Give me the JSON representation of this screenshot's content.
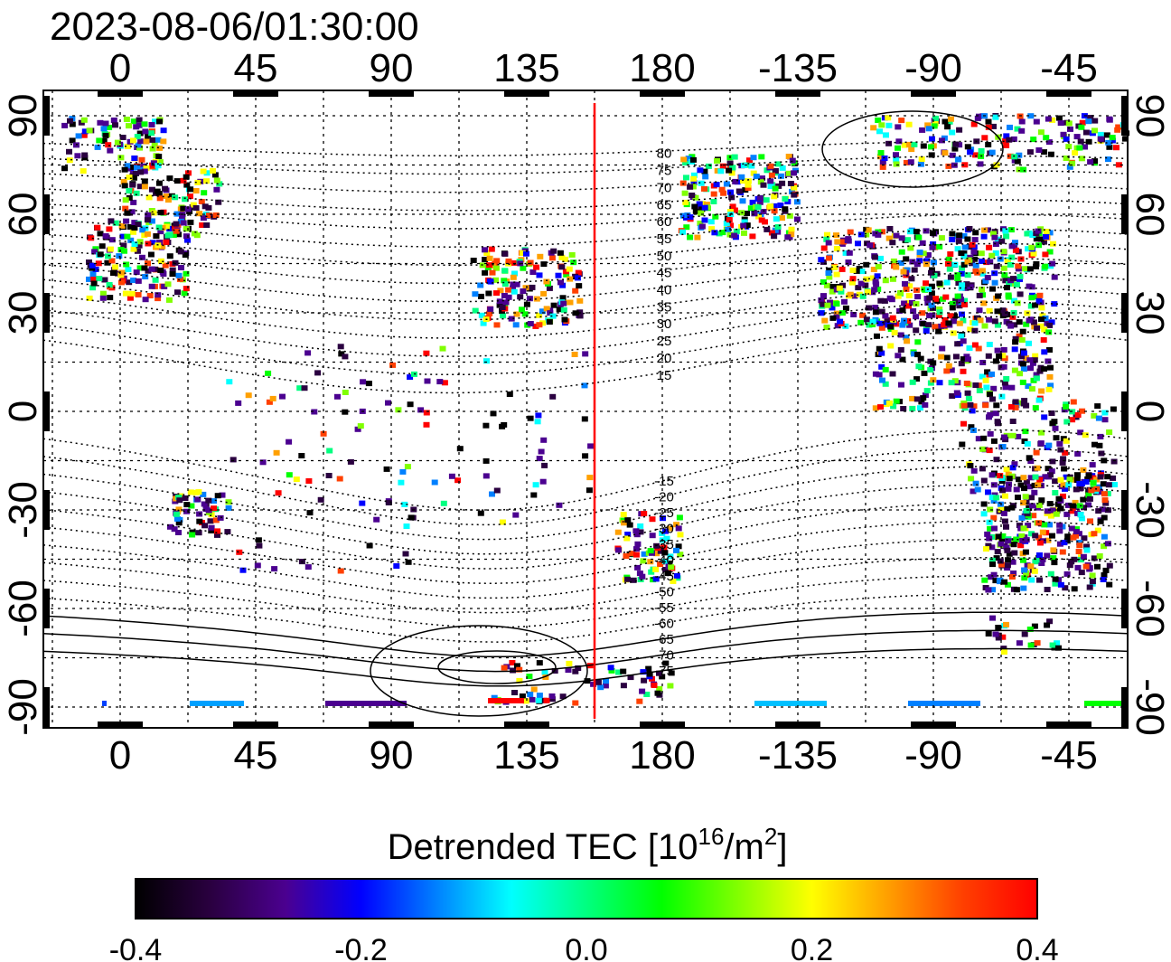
{
  "timestamp": "2023-08-06/01:30:00",
  "lon_ticks": [
    "0",
    "45",
    "90",
    "135",
    "180",
    "-135",
    "-90",
    "-45"
  ],
  "lon_values": [
    0,
    45,
    90,
    135,
    180,
    225,
    270,
    315
  ],
  "lat_ticks": [
    "90",
    "60",
    "30",
    "0",
    "-30",
    "-60",
    "-90"
  ],
  "lat_values": [
    90,
    60,
    30,
    0,
    -30,
    -60,
    -90
  ],
  "maglat_north": [
    "80",
    "75",
    "70",
    "65",
    "60",
    "55",
    "50",
    "45",
    "40",
    "35",
    "30",
    "25",
    "20",
    "15"
  ],
  "maglat_south": [
    "-15",
    "-20",
    "-25",
    "-30",
    "-35",
    "-40",
    "-45",
    "-50",
    "-55",
    "-60",
    "-65",
    "-70",
    "-75"
  ],
  "marker_longitude": 157.5,
  "colorbar": {
    "title": "Detrended TEC",
    "unit_prefix": "[10",
    "unit_exp1": "16",
    "unit_mid": "/m",
    "unit_exp2": "2",
    "unit_suffix": "]",
    "ticks": [
      "-0.4",
      "-0.2",
      "0.0",
      "0.2",
      "0.4"
    ],
    "range": [
      -0.4,
      0.4
    ]
  },
  "colors": {
    "marker_line": "#ff0000",
    "scale": [
      "#000000",
      "#2a0040",
      "#4b0090",
      "#0000ff",
      "#0080ff",
      "#00ffff",
      "#00ff80",
      "#00ff00",
      "#80ff00",
      "#ffff00",
      "#ffa000",
      "#ff4000",
      "#ff0000"
    ]
  }
}
